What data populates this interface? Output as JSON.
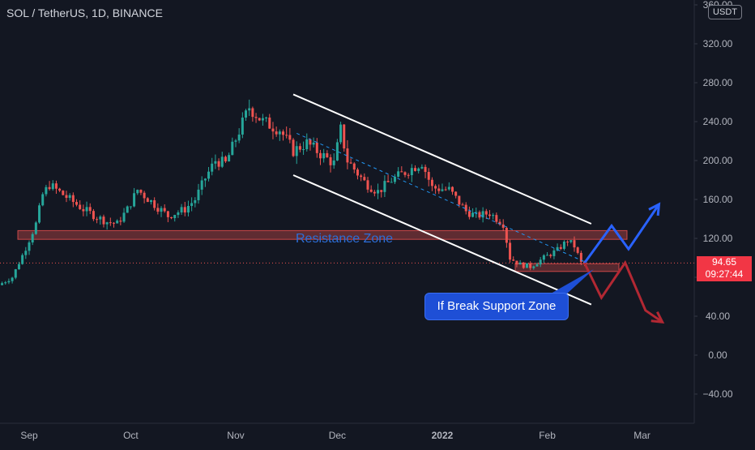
{
  "header": {
    "title": "SOL / TetherUS, 1D, BINANCE",
    "currency": "USDT"
  },
  "price_label": {
    "value": "94.65",
    "countdown": "09:27:44"
  },
  "annotations": {
    "resistance": "Resistance Zone",
    "callout": "If Break Support Zone"
  },
  "colors": {
    "background": "#131722",
    "up": "#26a69a",
    "down": "#ef5350",
    "zone": "#ef5350",
    "bull_arrow": "#2962ff",
    "bear_arrow": "#b22833",
    "channel": "#ffffff",
    "midline": "#2196f3"
  },
  "chart_data": {
    "type": "candlestick",
    "title": "SOL / TetherUS, 1D, BINANCE",
    "currency": "USDT",
    "y_axis": {
      "ticks": [
        "360.00",
        "320.00",
        "280.00",
        "240.00",
        "200.00",
        "160.00",
        "120.00",
        "80.00",
        "40.00",
        "0.00",
        "−40.00"
      ],
      "range": [
        -65,
        367
      ]
    },
    "x_axis": {
      "ticks": [
        "Sep",
        "Oct",
        "Nov",
        "Dec",
        "2022",
        "Feb",
        "Mar"
      ]
    },
    "last_price": 94.65,
    "price_key_points": [
      [
        "2021-08-24",
        72
      ],
      [
        "2021-08-28",
        80
      ],
      [
        "2021-09-01",
        110
      ],
      [
        "2021-09-04",
        135
      ],
      [
        "2021-09-06",
        165
      ],
      [
        "2021-09-08",
        175
      ],
      [
        "2021-09-10",
        170
      ],
      [
        "2021-09-14",
        160
      ],
      [
        "2021-09-18",
        150
      ],
      [
        "2021-09-22",
        142
      ],
      [
        "2021-09-25",
        137
      ],
      [
        "2021-09-28",
        135
      ],
      [
        "2021-10-01",
        150
      ],
      [
        "2021-10-04",
        170
      ],
      [
        "2021-10-08",
        158
      ],
      [
        "2021-10-13",
        143
      ],
      [
        "2021-10-18",
        150
      ],
      [
        "2021-10-21",
        160
      ],
      [
        "2021-10-24",
        182
      ],
      [
        "2021-10-27",
        200
      ],
      [
        "2021-10-30",
        197
      ],
      [
        "2021-11-02",
        222
      ],
      [
        "2021-11-06",
        255
      ],
      [
        "2021-11-10",
        240
      ],
      [
        "2021-11-15",
        232
      ],
      [
        "2021-11-19",
        210
      ],
      [
        "2021-11-23",
        218
      ],
      [
        "2021-11-27",
        207
      ],
      [
        "2021-12-01",
        197
      ],
      [
        "2021-12-03",
        232
      ],
      [
        "2021-12-05",
        200
      ],
      [
        "2021-12-10",
        178
      ],
      [
        "2021-12-14",
        168
      ],
      [
        "2021-12-18",
        180
      ],
      [
        "2021-12-22",
        188
      ],
      [
        "2021-12-27",
        198
      ],
      [
        "2021-12-30",
        172
      ],
      [
        "2022-01-04",
        170
      ],
      [
        "2022-01-09",
        148
      ],
      [
        "2022-01-12",
        143
      ],
      [
        "2022-01-16",
        146
      ],
      [
        "2022-01-20",
        135
      ],
      [
        "2022-01-22",
        100
      ],
      [
        "2022-01-25",
        93
      ],
      [
        "2022-01-28",
        91
      ],
      [
        "2022-02-01",
        100
      ],
      [
        "2022-02-05",
        108
      ],
      [
        "2022-02-08",
        118
      ],
      [
        "2022-02-10",
        112
      ],
      [
        "2022-02-12",
        94.65
      ]
    ],
    "resistance_zone": [
      119,
      128
    ],
    "support_zone": [
      86,
      94
    ],
    "channel": {
      "upper": [
        [
          "2021-11-18",
          268
        ],
        [
          "2022-02-14",
          135
        ]
      ],
      "lower": [
        [
          "2021-11-18",
          185
        ],
        [
          "2022-02-14",
          52
        ]
      ],
      "midline": [
        [
          "2021-11-19",
          228
        ],
        [
          "2022-02-12",
          96
        ]
      ]
    },
    "projection_bull": [
      [
        "2022-02-12",
        94.65
      ],
      [
        "2022-02-20",
        133
      ],
      [
        "2022-02-25",
        109
      ],
      [
        "2022-03-06",
        155
      ]
    ],
    "projection_bear": [
      [
        "2022-02-12",
        94.65
      ],
      [
        "2022-02-17",
        59
      ],
      [
        "2022-02-24",
        95
      ],
      [
        "2022-03-02",
        46
      ],
      [
        "2022-03-07",
        34
      ]
    ]
  }
}
